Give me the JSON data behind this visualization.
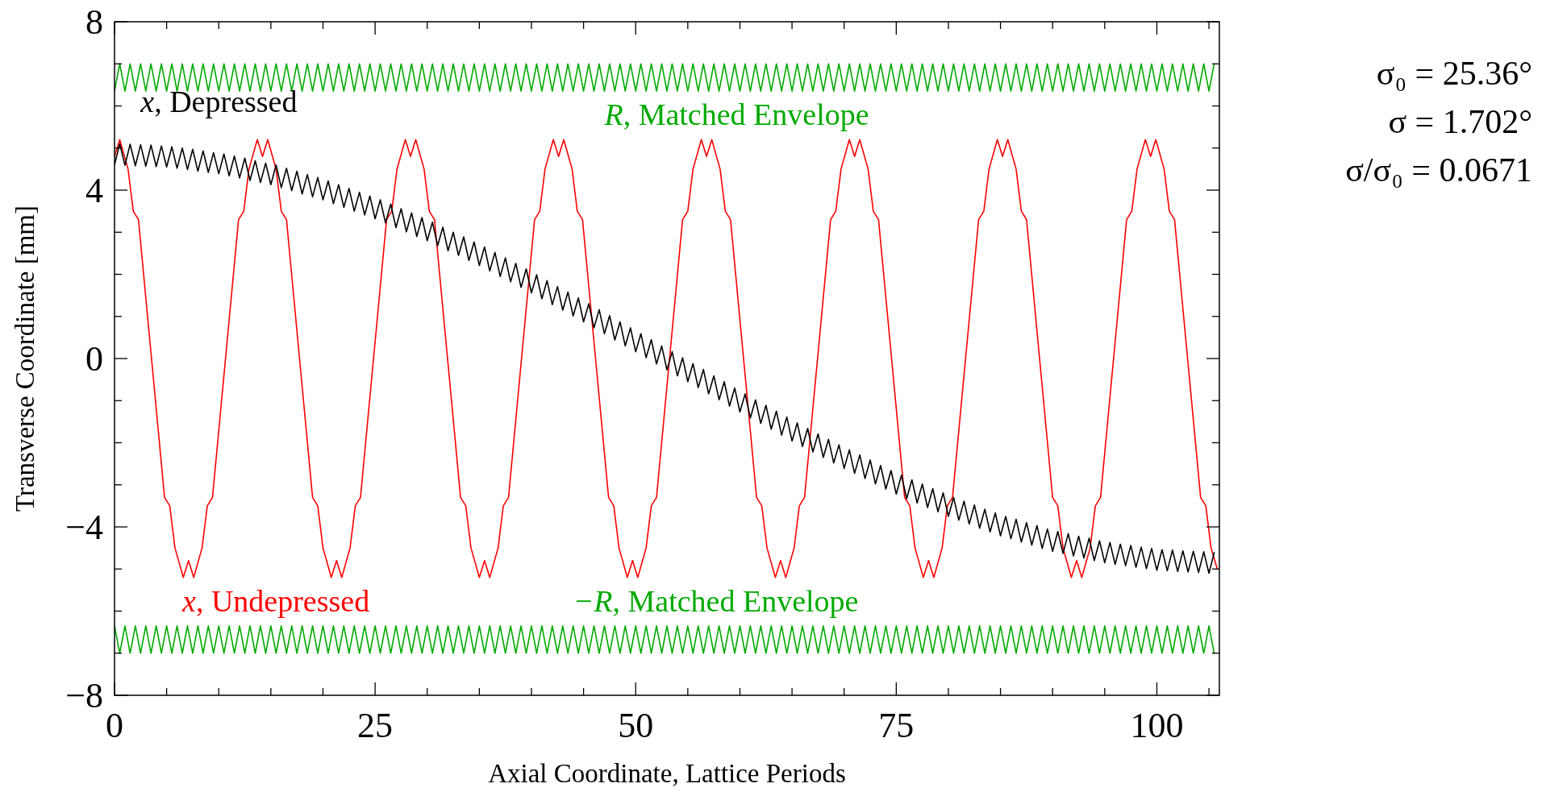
{
  "chart_data": {
    "type": "line",
    "xlabel": "Axial Coordinate, Lattice Periods",
    "ylabel": "Transverse Coordinate [mm]",
    "xlim": [
      0,
      106
    ],
    "ylim": [
      -8,
      8
    ],
    "xticks": [
      0,
      {
        "value": 5,
        "label": null
      },
      {
        "value": 10,
        "label": null
      },
      {
        "value": 15,
        "label": null
      },
      {
        "value": 20,
        "label": null
      },
      25,
      {
        "value": 30,
        "label": null
      },
      {
        "value": 35,
        "label": null
      },
      {
        "value": 40,
        "label": null
      },
      {
        "value": 45,
        "label": null
      },
      50,
      {
        "value": 55,
        "label": null
      },
      {
        "value": 60,
        "label": null
      },
      {
        "value": 65,
        "label": null
      },
      {
        "value": 70,
        "label": null
      },
      75,
      {
        "value": 80,
        "label": null
      },
      {
        "value": 85,
        "label": null
      },
      {
        "value": 90,
        "label": null
      },
      {
        "value": 95,
        "label": null
      },
      100,
      {
        "value": 105,
        "label": null
      }
    ],
    "yticks": [
      -8,
      {
        "value": -7,
        "label": null
      },
      {
        "value": -6,
        "label": null
      },
      {
        "value": -5,
        "label": null
      },
      -4,
      {
        "value": -3,
        "label": null
      },
      {
        "value": -2,
        "label": null
      },
      {
        "value": -1,
        "label": null
      },
      0,
      {
        "value": 1,
        "label": null
      },
      {
        "value": 2,
        "label": null
      },
      {
        "value": 3,
        "label": null
      },
      4,
      {
        "value": 5,
        "label": null
      },
      {
        "value": 6,
        "label": null
      },
      {
        "value": 7,
        "label": null
      },
      8
    ],
    "annotations": [
      "σ₀ = 25.36°",
      "σ = 1.702°",
      "σ/σ₀ = 0.0671"
    ],
    "x": [
      0,
      0.5,
      1,
      1.5,
      2,
      2.5,
      3,
      3.5,
      4,
      4.5,
      5,
      5.5,
      6,
      6.5,
      7,
      7.5,
      8,
      8.5,
      9,
      9.5,
      10,
      10.5,
      11,
      11.5,
      12,
      12.5,
      13,
      13.5,
      14,
      14.5,
      15,
      15.5,
      16,
      16.5,
      17,
      17.5,
      18,
      18.5,
      19,
      19.5,
      20,
      20.5,
      21,
      21.5,
      22,
      22.5,
      23,
      23.5,
      24,
      24.5,
      25,
      25.5,
      26,
      26.5,
      27,
      27.5,
      28,
      28.5,
      29,
      29.5,
      30,
      30.5,
      31,
      31.5,
      32,
      32.5,
      33,
      33.5,
      34,
      34.5,
      35,
      35.5,
      36,
      36.5,
      37,
      37.5,
      38,
      38.5,
      39,
      39.5,
      40,
      40.5,
      41,
      41.5,
      42,
      42.5,
      43,
      43.5,
      44,
      44.5,
      45,
      45.5,
      46,
      46.5,
      47,
      47.5,
      48,
      48.5,
      49,
      49.5,
      50,
      50.5,
      51,
      51.5,
      52,
      52.5,
      53,
      53.5,
      54,
      54.5,
      55,
      55.5,
      56,
      56.5,
      57,
      57.5,
      58,
      58.5,
      59,
      59.5,
      60,
      60.5,
      61,
      61.5,
      62,
      62.5,
      63,
      63.5,
      64,
      64.5,
      65,
      65.5,
      66,
      66.5,
      67,
      67.5,
      68,
      68.5,
      69,
      69.5,
      70,
      70.5,
      71,
      71.5,
      72,
      72.5,
      73,
      73.5,
      74,
      74.5,
      75,
      75.5,
      76,
      76.5,
      77,
      77.5,
      78,
      78.5,
      79,
      79.5,
      80,
      80.5,
      81,
      81.5,
      82,
      82.5,
      83,
      83.5,
      84,
      84.5,
      85,
      85.5,
      86,
      86.5,
      87,
      87.5,
      88,
      88.5,
      89,
      89.5,
      90,
      90.5,
      91,
      91.5,
      92,
      92.5,
      93,
      93.5,
      94,
      94.5,
      95,
      95.5,
      96,
      96.5,
      97,
      97.5,
      98,
      98.5,
      99,
      99.5,
      100,
      100.5,
      101,
      101.5,
      102,
      102.5,
      103,
      103.5,
      104,
      104.5,
      105,
      105.5
    ],
    "series": [
      {
        "name": "R, Matched Envelope",
        "color": "#00aa00",
        "values": [
          6.35,
          7,
          6.35,
          7,
          6.35,
          7,
          6.35,
          7,
          6.35,
          7,
          6.35,
          7,
          6.35,
          7,
          6.35,
          7,
          6.35,
          7,
          6.35,
          7,
          6.35,
          7,
          6.35,
          7,
          6.35,
          7,
          6.35,
          7,
          6.35,
          7,
          6.35,
          7,
          6.35,
          7,
          6.35,
          7,
          6.35,
          7,
          6.35,
          7,
          6.35,
          7,
          6.35,
          7,
          6.35,
          7,
          6.35,
          7,
          6.35,
          7,
          6.35,
          7,
          6.35,
          7,
          6.35,
          7,
          6.35,
          7,
          6.35,
          7,
          6.35,
          7,
          6.35,
          7,
          6.35,
          7,
          6.35,
          7,
          6.35,
          7,
          6.35,
          7,
          6.35,
          7,
          6.35,
          7,
          6.35,
          7,
          6.35,
          7,
          6.35,
          7,
          6.35,
          7,
          6.35,
          7,
          6.35,
          7,
          6.35,
          7,
          6.35,
          7,
          6.35,
          7,
          6.35,
          7,
          6.35,
          7,
          6.35,
          7,
          6.35,
          7,
          6.35,
          7,
          6.35,
          7,
          6.35,
          7,
          6.35,
          7,
          6.35,
          7,
          6.35,
          7,
          6.35,
          7,
          6.35,
          7,
          6.35,
          7,
          6.35,
          7,
          6.35,
          7,
          6.35,
          7,
          6.35,
          7,
          6.35,
          7,
          6.35,
          7,
          6.35,
          7,
          6.35,
          7,
          6.35,
          7,
          6.35,
          7,
          6.35,
          7,
          6.35,
          7,
          6.35,
          7,
          6.35,
          7,
          6.35,
          7,
          6.35,
          7,
          6.35,
          7,
          6.35,
          7,
          6.35,
          7,
          6.35,
          7,
          6.35,
          7,
          6.35,
          7,
          6.35,
          7,
          6.35,
          7,
          6.35,
          7,
          6.35,
          7,
          6.35,
          7,
          6.35,
          7,
          6.35,
          7,
          6.35,
          7,
          6.35,
          7,
          6.35,
          7,
          6.35,
          7,
          6.35,
          7,
          6.35,
          7,
          6.35,
          7,
          6.35,
          7,
          6.35,
          7,
          6.35,
          7,
          6.35,
          7,
          6.35,
          7,
          6.35,
          7,
          6.35,
          7,
          6.35,
          7,
          6.35,
          7,
          6.35,
          7
        ]
      },
      {
        "name": "−R, Matched Envelope",
        "color": "#00aa00",
        "values": [
          -6.35,
          -7,
          -6.35,
          -7,
          -6.35,
          -7,
          -6.35,
          -7,
          -6.35,
          -7,
          -6.35,
          -7,
          -6.35,
          -7,
          -6.35,
          -7,
          -6.35,
          -7,
          -6.35,
          -7,
          -6.35,
          -7,
          -6.35,
          -7,
          -6.35,
          -7,
          -6.35,
          -7,
          -6.35,
          -7,
          -6.35,
          -7,
          -6.35,
          -7,
          -6.35,
          -7,
          -6.35,
          -7,
          -6.35,
          -7,
          -6.35,
          -7,
          -6.35,
          -7,
          -6.35,
          -7,
          -6.35,
          -7,
          -6.35,
          -7,
          -6.35,
          -7,
          -6.35,
          -7,
          -6.35,
          -7,
          -6.35,
          -7,
          -6.35,
          -7,
          -6.35,
          -7,
          -6.35,
          -7,
          -6.35,
          -7,
          -6.35,
          -7,
          -6.35,
          -7,
          -6.35,
          -7,
          -6.35,
          -7,
          -6.35,
          -7,
          -6.35,
          -7,
          -6.35,
          -7,
          -6.35,
          -7,
          -6.35,
          -7,
          -6.35,
          -7,
          -6.35,
          -7,
          -6.35,
          -7,
          -6.35,
          -7,
          -6.35,
          -7,
          -6.35,
          -7,
          -6.35,
          -7,
          -6.35,
          -7,
          -6.35,
          -7,
          -6.35,
          -7,
          -6.35,
          -7,
          -6.35,
          -7,
          -6.35,
          -7,
          -6.35,
          -7,
          -6.35,
          -7,
          -6.35,
          -7,
          -6.35,
          -7,
          -6.35,
          -7,
          -6.35,
          -7,
          -6.35,
          -7,
          -6.35,
          -7,
          -6.35,
          -7,
          -6.35,
          -7,
          -6.35,
          -7,
          -6.35,
          -7,
          -6.35,
          -7,
          -6.35,
          -7,
          -6.35,
          -7,
          -6.35,
          -7,
          -6.35,
          -7,
          -6.35,
          -7,
          -6.35,
          -7,
          -6.35,
          -7,
          -6.35,
          -7,
          -6.35,
          -7,
          -6.35,
          -7,
          -6.35,
          -7,
          -6.35,
          -7,
          -6.35,
          -7,
          -6.35,
          -7,
          -6.35,
          -7,
          -6.35,
          -7,
          -6.35,
          -7,
          -6.35,
          -7,
          -6.35,
          -7,
          -6.35,
          -7,
          -6.35,
          -7,
          -6.35,
          -7,
          -6.35,
          -7,
          -6.35,
          -7,
          -6.35,
          -7,
          -6.35,
          -7,
          -6.35,
          -7,
          -6.35,
          -7,
          -6.35,
          -7,
          -6.35,
          -7,
          -6.35,
          -7,
          -6.35,
          -7,
          -6.35,
          -7,
          -6.35,
          -7,
          -6.35,
          -7,
          -6.35,
          -7,
          -6.35,
          -7,
          -6.35,
          -7
        ]
      },
      {
        "name": "x, Undepressed",
        "color": "#ff0000",
        "x": [
          0,
          0.5,
          1.3,
          1.8,
          2.3,
          3.55,
          4.8,
          5.3,
          5.8,
          6.6,
          7.1,
          7.6,
          8.4,
          8.9,
          9.4,
          10.65,
          11.9,
          12.4,
          12.9,
          13.7,
          14.2,
          14.7,
          15.5,
          16,
          16.5,
          17.75,
          19,
          19.5,
          20,
          20.8,
          21.3,
          21.8,
          22.6,
          23.1,
          23.6,
          24.85,
          26.1,
          26.6,
          27.1,
          27.9,
          28.4,
          28.9,
          29.7,
          30.2,
          30.7,
          31.95,
          33.2,
          33.7,
          34.2,
          35,
          35.5,
          36,
          36.8,
          37.3,
          37.8,
          39.05,
          40.3,
          40.8,
          41.3,
          42.1,
          42.6,
          43.1,
          43.9,
          44.4,
          44.9,
          46.15,
          47.4,
          47.9,
          48.4,
          49.2,
          49.7,
          50.2,
          51,
          51.5,
          52,
          53.25,
          54.5,
          55,
          55.5,
          56.3,
          56.8,
          57.3,
          58.1,
          58.6,
          59.1,
          60.35,
          61.6,
          62.1,
          62.6,
          63.4,
          63.9,
          64.4,
          65.2,
          65.7,
          66.2,
          67.45,
          68.7,
          69.2,
          69.7,
          70.5,
          71,
          71.5,
          72.3,
          72.8,
          73.3,
          74.55,
          75.8,
          76.3,
          76.8,
          77.6,
          78.1,
          78.6,
          79.4,
          79.9,
          80.4,
          81.65,
          82.9,
          83.4,
          83.9,
          84.7,
          85.2,
          85.7,
          86.5,
          87,
          87.5,
          88.75,
          90,
          90.5,
          91,
          91.8,
          92.3,
          92.8,
          93.6,
          94.1,
          94.6,
          95.85,
          97.1,
          97.6,
          98.1,
          98.9,
          99.4,
          99.9,
          100.7,
          101.2,
          101.7,
          102.95,
          104.2,
          104.7,
          105.2,
          105.8
        ],
        "values": [
          4.8,
          5.2,
          4.5,
          3.5,
          3.3,
          0,
          -3.3,
          -3.5,
          -4.5,
          -5.2,
          -4.8,
          -5.2,
          -4.5,
          -3.5,
          -3.3,
          0,
          3.3,
          3.5,
          4.5,
          5.2,
          4.8,
          5.2,
          4.5,
          3.5,
          3.3,
          0,
          -3.3,
          -3.5,
          -4.5,
          -5.2,
          -4.8,
          -5.2,
          -4.5,
          -3.5,
          -3.3,
          0,
          3.3,
          3.5,
          4.5,
          5.2,
          4.8,
          5.2,
          4.5,
          3.5,
          3.3,
          0,
          -3.3,
          -3.5,
          -4.5,
          -5.2,
          -4.8,
          -5.2,
          -4.5,
          -3.5,
          -3.3,
          0,
          3.3,
          3.5,
          4.5,
          5.2,
          4.8,
          5.2,
          4.5,
          3.5,
          3.3,
          0,
          -3.3,
          -3.5,
          -4.5,
          -5.2,
          -4.8,
          -5.2,
          -4.5,
          -3.5,
          -3.3,
          0,
          3.3,
          3.5,
          4.5,
          5.2,
          4.8,
          5.2,
          4.5,
          3.5,
          3.3,
          0,
          -3.3,
          -3.5,
          -4.5,
          -5.2,
          -4.8,
          -5.2,
          -4.5,
          -3.5,
          -3.3,
          0,
          3.3,
          3.5,
          4.5,
          5.2,
          4.8,
          5.2,
          4.5,
          3.5,
          3.3,
          0,
          -3.3,
          -3.5,
          -4.5,
          -5.2,
          -4.8,
          -5.2,
          -4.5,
          -3.5,
          -3.3,
          0,
          3.3,
          3.5,
          4.5,
          5.2,
          4.8,
          5.2,
          4.5,
          3.5,
          3.3,
          0,
          -3.3,
          -3.5,
          -4.5,
          -5.2,
          -4.8,
          -5.2,
          -4.5,
          -3.5,
          -3.3,
          0,
          3.3,
          3.5,
          4.5,
          5.2,
          4.8,
          5.2,
          4.5,
          3.5,
          3.3,
          0,
          -3.3,
          -3.5,
          -4.5,
          -5
        ]
      },
      {
        "name": "x, Depressed",
        "color": "#000000",
        "values": [
          4.6,
          5.1,
          4.59,
          5.09,
          4.58,
          5.08,
          4.57,
          5.07,
          4.56,
          5.05,
          4.55,
          5.03,
          4.52,
          5,
          4.49,
          4.97,
          4.45,
          4.93,
          4.42,
          4.89,
          4.39,
          4.86,
          4.34,
          4.81,
          4.29,
          4.76,
          4.23,
          4.7,
          4.18,
          4.64,
          4.13,
          4.6,
          4.06,
          4.52,
          3.99,
          4.45,
          3.91,
          4.37,
          3.84,
          4.3,
          3.77,
          4.22,
          3.68,
          4.13,
          3.59,
          4.04,
          3.5,
          3.95,
          3.41,
          3.86,
          3.32,
          3.77,
          3.22,
          3.67,
          3.11,
          3.56,
          3.01,
          3.46,
          2.9,
          3.35,
          2.8,
          3.24,
          2.68,
          3.12,
          2.56,
          3,
          2.45,
          2.89,
          2.33,
          2.77,
          2.21,
          2.65,
          2.08,
          2.52,
          1.95,
          2.39,
          1.82,
          2.26,
          1.69,
          2.13,
          1.56,
          1.99,
          1.42,
          1.85,
          1.28,
          1.71,
          1.15,
          1.58,
          1.01,
          1.44,
          0.87,
          1.3,
          0.73,
          1.16,
          0.59,
          1.02,
          0.44,
          0.87,
          0.3,
          0.73,
          0.16,
          0.59,
          0.02,
          0.45,
          -0.13,
          0.3,
          -0.27,
          0.16,
          -0.41,
          0.02,
          -0.55,
          -0.12,
          -0.69,
          -0.26,
          -0.84,
          -0.41,
          -0.98,
          -0.55,
          -1.13,
          -0.7,
          -1.27,
          -0.84,
          -1.41,
          -0.98,
          -1.54,
          -1.11,
          -1.68,
          -1.25,
          -1.82,
          -1.39,
          -1.96,
          -1.53,
          -2.09,
          -1.66,
          -2.22,
          -1.79,
          -2.35,
          -1.92,
          -2.48,
          -2.05,
          -2.61,
          -2.17,
          -2.73,
          -2.29,
          -2.85,
          -2.41,
          -2.98,
          -2.54,
          -3.1,
          -2.66,
          -3.22,
          -2.77,
          -3.33,
          -2.88,
          -3.43,
          -2.98,
          -3.54,
          -3.09,
          -3.64,
          -3.19,
          -3.75,
          -3.3,
          -3.84,
          -3.39,
          -3.93,
          -3.48,
          -4.03,
          -3.58,
          -4.12,
          -3.67,
          -4.21,
          -3.75,
          -4.28,
          -3.82,
          -4.36,
          -3.9,
          -4.43,
          -3.97,
          -4.51,
          -4.05,
          -4.58,
          -4.11,
          -4.63,
          -4.16,
          -4.69,
          -4.22,
          -4.74,
          -4.27,
          -4.8,
          -4.33,
          -4.85,
          -4.37,
          -4.89,
          -4.41,
          -4.92,
          -4.44,
          -4.96,
          -4.48,
          -4.99,
          -4.51,
          -5.03,
          -4.54,
          -5.04,
          -4.55,
          -5.06,
          -4.57,
          -5.07,
          -4.58,
          -5.08,
          -4.59,
          -5.1,
          -4.61
        ]
      }
    ]
  }
}
